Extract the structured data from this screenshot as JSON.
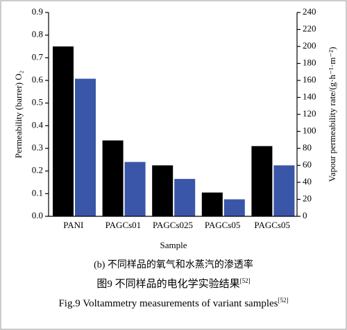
{
  "chart_data": {
    "type": "bar",
    "categories": [
      "PANI",
      "PAGCs01",
      "PAGCs025",
      "PAGCs05",
      "PAGCs05"
    ],
    "series": [
      {
        "color": "#000000",
        "values": [
          0.75,
          0.335,
          0.225,
          0.105,
          0.31
        ]
      },
      {
        "color": "#3a56a8",
        "axis": "y2",
        "values": [
          162,
          64,
          44,
          20,
          60
        ]
      }
    ],
    "ylabel": "Permeability (barrer) O₂",
    "y2label": "Vapour permeability rate/(g·h⁻¹·m⁻²)",
    "xlabel": "Sample",
    "ylim": [
      0,
      0.9
    ],
    "yticks": [
      {
        "value": 0,
        "label": "0.0"
      },
      0.1,
      0.2,
      0.3,
      0.4,
      0.5,
      0.6,
      0.7,
      0.8,
      0.9
    ],
    "y2lim": [
      0,
      240
    ],
    "y2ticks": [
      0,
      20,
      40,
      60,
      80,
      100,
      120,
      140,
      160,
      180,
      200,
      220,
      240
    ],
    "subcaption": "(b) 不同样品的氧气和水蒸汽的渗透率",
    "caption_cn": {
      "text": "图9   不同样品的电化学实验结果",
      "ref": "[52]"
    },
    "caption_en": {
      "text": "Fig.9   Voltammetry measurements of variant samples",
      "ref": "[52]"
    }
  }
}
